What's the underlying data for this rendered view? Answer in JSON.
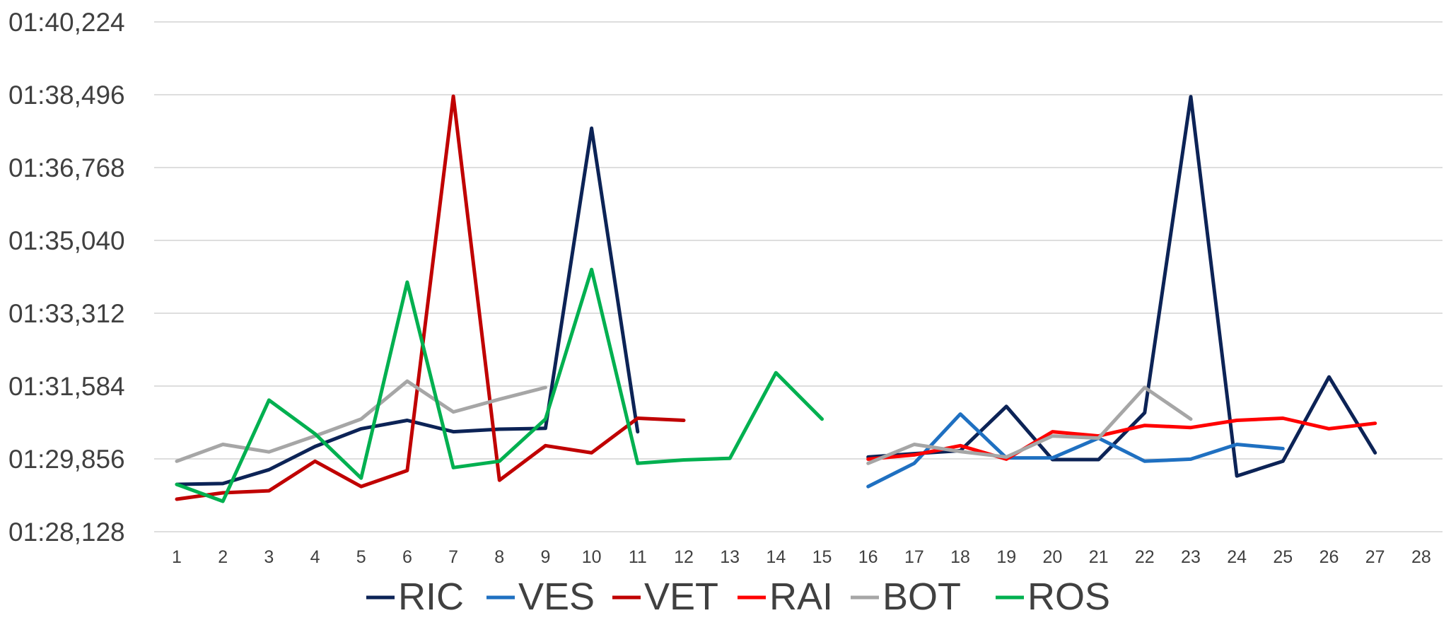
{
  "chart_data": {
    "type": "line",
    "title": "",
    "xlabel": "",
    "ylabel": "",
    "x": [
      1,
      2,
      3,
      4,
      5,
      6,
      7,
      8,
      9,
      10,
      11,
      12,
      13,
      14,
      15,
      16,
      17,
      18,
      19,
      20,
      21,
      22,
      23,
      24,
      25,
      26,
      27,
      28
    ],
    "y_ticks_seconds": [
      88.128,
      89.856,
      91.584,
      93.312,
      95.04,
      96.768,
      98.496,
      100.224
    ],
    "y_tick_labels": [
      "01:28,128",
      "01:29,856",
      "01:31,584",
      "01:33,312",
      "01:35,040",
      "01:36,768",
      "01:38,496",
      "01:40,224"
    ],
    "ylim": [
      88.128,
      100.224
    ],
    "grid": true,
    "legend_position": "bottom",
    "series": [
      {
        "name": "RIC",
        "color": "#0c2356",
        "values": [
          89.25,
          89.27,
          89.6,
          90.15,
          90.57,
          90.77,
          90.5,
          90.56,
          90.58,
          97.7,
          90.5,
          null,
          null,
          null,
          null,
          89.9,
          89.98,
          90.05,
          91.1,
          89.84,
          89.84,
          90.95,
          98.45,
          89.45,
          89.8,
          91.8,
          90.0,
          null
        ]
      },
      {
        "name": "VES",
        "color": "#1f70c1",
        "values": [
          null,
          null,
          null,
          null,
          null,
          null,
          null,
          null,
          null,
          null,
          null,
          null,
          null,
          null,
          null,
          89.2,
          89.75,
          90.92,
          89.88,
          89.88,
          90.35,
          89.8,
          89.85,
          90.2,
          90.1,
          null,
          null,
          null
        ]
      },
      {
        "name": "VET",
        "color": "#c00000",
        "values": [
          88.9,
          89.05,
          89.1,
          89.8,
          89.2,
          89.58,
          98.46,
          89.35,
          90.17,
          90.0,
          90.82,
          90.77,
          null,
          null,
          null,
          null,
          null,
          null,
          null,
          null,
          null,
          null,
          null,
          null,
          null,
          null,
          null,
          null
        ]
      },
      {
        "name": "RAI",
        "color": "#ff0000",
        "values": [
          null,
          null,
          null,
          null,
          null,
          null,
          null,
          null,
          null,
          null,
          null,
          null,
          null,
          null,
          null,
          89.85,
          89.95,
          90.17,
          89.85,
          90.5,
          90.4,
          90.65,
          90.6,
          90.77,
          90.82,
          90.57,
          90.7,
          null
        ]
      },
      {
        "name": "BOT",
        "color": "#a6a6a6",
        "values": [
          89.8,
          90.2,
          90.02,
          90.4,
          90.8,
          91.7,
          90.97,
          91.27,
          91.55,
          null,
          null,
          null,
          null,
          null,
          null,
          89.75,
          90.2,
          90.03,
          89.9,
          90.4,
          90.35,
          91.55,
          90.8,
          null,
          null,
          null,
          null,
          null
        ]
      },
      {
        "name": "ROS",
        "color": "#00b050",
        "values": [
          89.25,
          88.85,
          91.25,
          90.45,
          89.4,
          94.05,
          89.65,
          89.8,
          90.8,
          94.35,
          89.75,
          89.83,
          89.87,
          91.9,
          90.8,
          null,
          null,
          null,
          null,
          null,
          null,
          null,
          null,
          null,
          null,
          null,
          null,
          null
        ]
      }
    ]
  }
}
